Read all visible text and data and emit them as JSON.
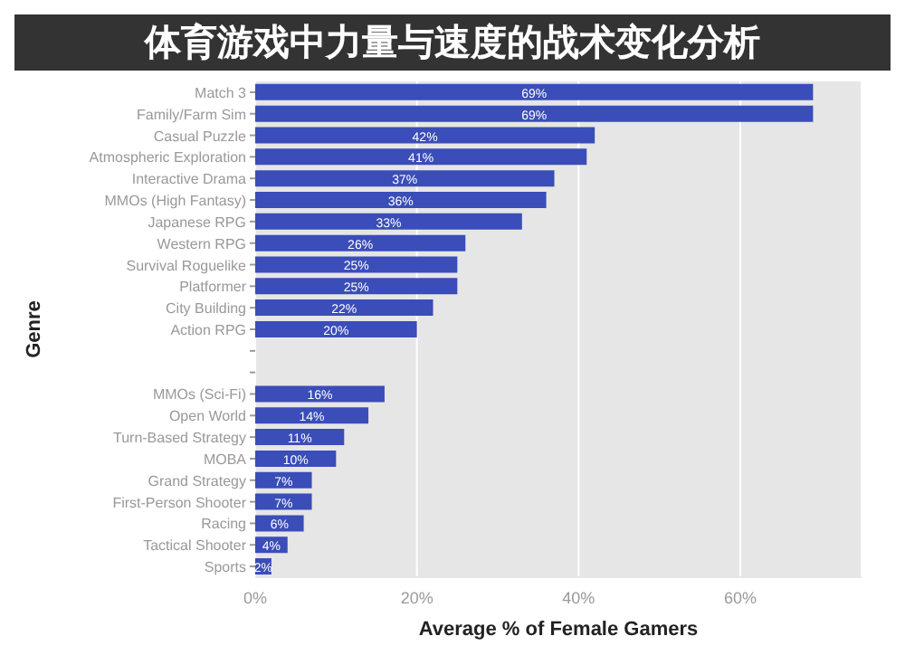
{
  "chart_data": {
    "type": "bar",
    "orientation": "horizontal",
    "title": "体育游戏中力量与速度的战术变化分析",
    "xlabel": "Average % of Female Gamers",
    "ylabel": "Genre",
    "categories": [
      "Match 3",
      "Family/Farm Sim",
      "Casual Puzzle",
      "Atmospheric Exploration",
      "Interactive Drama",
      "MMOs (High Fantasy)",
      "Japanese RPG",
      "Western RPG",
      "Survival Roguelike",
      "Platformer",
      "City Building",
      "Action RPG",
      null,
      null,
      "MMOs (Sci-Fi)",
      "Open World",
      "Turn-Based Strategy",
      "MOBA",
      "Grand Strategy",
      "First-Person Shooter",
      "Racing",
      "Tactical Shooter",
      "Sports"
    ],
    "values": [
      69,
      69,
      42,
      41,
      37,
      36,
      33,
      26,
      25,
      25,
      22,
      20,
      null,
      null,
      16,
      14,
      11,
      10,
      7,
      7,
      6,
      4,
      2
    ],
    "value_labels": [
      "69%",
      "69%",
      "42%",
      "41%",
      "37%",
      "36%",
      "33%",
      "26%",
      "25%",
      "25%",
      "22%",
      "20%",
      null,
      null,
      "16%",
      "14%",
      "11%",
      "10%",
      "7%",
      "7%",
      "6%",
      "4%",
      "2%"
    ],
    "color": "#3a4db8",
    "xlim": [
      0,
      75
    ],
    "xticks": [
      {
        "value": 0,
        "label": "0%"
      },
      {
        "value": 20,
        "label": "20%"
      },
      {
        "value": 40,
        "label": "40%"
      },
      {
        "value": 60,
        "label": "60%"
      }
    ],
    "grid": "x"
  }
}
